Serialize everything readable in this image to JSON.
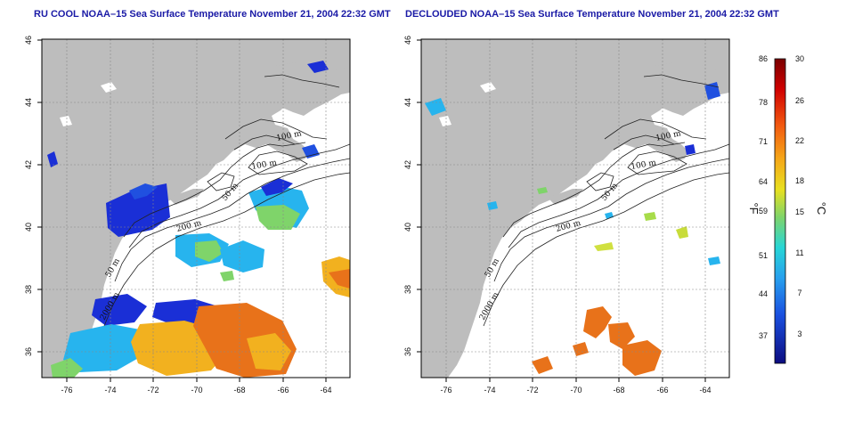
{
  "left_map": {
    "title": "RU COOL NOAA–15 Sea Surface Temperature November 21, 2004 22:32 GMT",
    "lat_labels": [
      "46",
      "44",
      "42",
      "40",
      "38",
      "36"
    ],
    "lon_labels": [
      "-76",
      "-74",
      "-72",
      "-70",
      "-68",
      "-66",
      "-64"
    ],
    "contour_labels": [
      "100 m",
      "100 m",
      "50 m",
      "200 m",
      "50 m",
      "2000 m"
    ]
  },
  "right_map": {
    "title": "DECLOUDED NOAA–15 Sea Surface Temperature November 21, 2004 22:32 GMT",
    "lat_labels": [
      "46",
      "44",
      "42",
      "40",
      "38",
      "36"
    ],
    "lon_labels": [
      "-76",
      "-74",
      "-72",
      "-70",
      "-68",
      "-66",
      "-64"
    ],
    "contour_labels": [
      "100 m",
      "100 m",
      "50 m",
      "200 m",
      "50 m",
      "2000 m"
    ]
  },
  "colorbar": {
    "fahrenheit_labels": [
      "86",
      "78",
      "71",
      "64",
      "59",
      "51",
      "44",
      "37"
    ],
    "celsius_labels": [
      "30",
      "26",
      "22",
      "18",
      "15",
      "11",
      "7",
      "3"
    ],
    "fahrenheit_unit": "°F",
    "celsius_unit": "°C"
  },
  "colors": {
    "land": "#bdbdbd",
    "title": "#1a1aa6",
    "cold": "#1a2fd6",
    "cool": "#27b4ee",
    "mild": "#7fd46a",
    "warm": "#f2b11f",
    "hot": "#e8721a"
  }
}
